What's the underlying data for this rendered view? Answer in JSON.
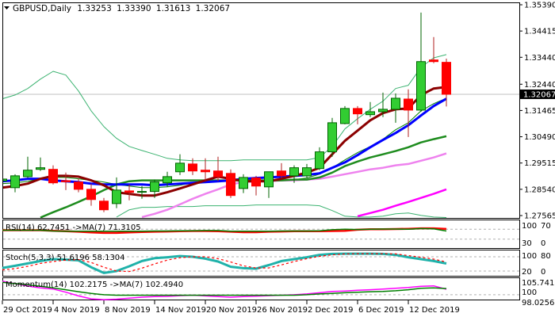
{
  "header": {
    "symbol": "GBPUSD,Daily",
    "open": "1.33253",
    "high": "1.33390",
    "low": "1.31613",
    "close": "1.32067"
  },
  "price_axis": {
    "labels": [
      "1.35390",
      "1.34415",
      "1.33440",
      "1.32440",
      "1.31465",
      "1.30490",
      "1.29515",
      "1.28540",
      "1.27565"
    ],
    "current_price": "1.32067",
    "current_price_value": 1.32067,
    "range": [
      1.27565,
      1.3539
    ]
  },
  "date_axis": {
    "labels": [
      "29 Oct 2019",
      "4 Nov 2019",
      "8 Nov 2019",
      "14 Nov 2019",
      "20 Nov 2019",
      "26 Nov 2019",
      "2 Dec 2019",
      "6 Dec 2019",
      "12 Dec 2019"
    ],
    "every_n_candles": 4
  },
  "colors": {
    "bull_body": "#32cd32",
    "bull_border": "#006400",
    "bear_body": "#ff0000",
    "bear_border": "#b22222",
    "ma_maroon": "#8b0000",
    "ma_blue": "#0000ff",
    "ma_green": "#1e8c1e",
    "ma_violet": "#ee82ee",
    "ma_magenta": "#ff00ff",
    "band": "#3cb371",
    "ma_thin": "#008000",
    "rsi": "#008000",
    "rsi_ma": "#ff0000",
    "stoch_main": "#20b2aa",
    "stoch_signal": "#ff0000",
    "momentum": "#ff00ff",
    "momentum_ma": "#008000"
  },
  "candles": [
    [
      1.2885,
      1.2905,
      1.286,
      1.2892
    ],
    [
      1.286,
      1.291,
      1.2843,
      1.2904
    ],
    [
      1.2901,
      1.2975,
      1.2896,
      1.2925
    ],
    [
      1.2928,
      1.2972,
      1.2922,
      1.2934
    ],
    [
      1.2928,
      1.2943,
      1.2872,
      1.2878
    ],
    [
      1.2886,
      1.2916,
      1.2851,
      1.2882
    ],
    [
      1.2881,
      1.2893,
      1.2843,
      1.2854
    ],
    [
      1.2854,
      1.2875,
      1.2793,
      1.2816
    ],
    [
      1.281,
      1.2822,
      1.2769,
      1.2778
    ],
    [
      1.2801,
      1.2898,
      1.2784,
      1.2851
    ],
    [
      1.2848,
      1.2872,
      1.2813,
      1.2843
    ],
    [
      1.2843,
      1.2866,
      1.2819,
      1.2846
    ],
    [
      1.2846,
      1.289,
      1.2822,
      1.2881
    ],
    [
      1.2878,
      1.2919,
      1.2863,
      1.2901
    ],
    [
      1.2919,
      1.2984,
      1.2907,
      1.2951
    ],
    [
      1.2948,
      1.2969,
      1.2907,
      1.2922
    ],
    [
      1.2925,
      1.2969,
      1.2887,
      1.2919
    ],
    [
      1.2922,
      1.2975,
      1.2884,
      1.2901
    ],
    [
      1.2913,
      1.2928,
      1.2822,
      1.2831
    ],
    [
      1.2857,
      1.291,
      1.284,
      1.2898
    ],
    [
      1.2896,
      1.2904,
      1.2831,
      1.2866
    ],
    [
      1.2863,
      1.2919,
      1.2822,
      1.2919
    ],
    [
      1.2922,
      1.2951,
      1.2896,
      1.2904
    ],
    [
      1.2904,
      1.2943,
      1.2878,
      1.2934
    ],
    [
      1.2904,
      1.2948,
      1.2896,
      1.2934
    ],
    [
      1.2931,
      1.301,
      1.2925,
      1.2993
    ],
    [
      1.2993,
      1.3119,
      1.2975,
      1.3101
    ],
    [
      1.3098,
      1.3163,
      1.3095,
      1.3154
    ],
    [
      1.3154,
      1.3163,
      1.3095,
      1.3134
    ],
    [
      1.3131,
      1.3178,
      1.3122,
      1.3142
    ],
    [
      1.3142,
      1.3213,
      1.3122,
      1.3151
    ],
    [
      1.3151,
      1.321,
      1.3101,
      1.3192
    ],
    [
      1.3189,
      1.3225,
      1.3048,
      1.3148
    ],
    [
      1.3148,
      1.351,
      1.3142,
      1.3328
    ],
    [
      1.3334,
      1.3419,
      1.3322,
      1.3328
    ],
    [
      1.33253,
      1.3339,
      1.31613,
      1.32067
    ]
  ],
  "overlays": [
    {
      "name": "band-upper",
      "color": "band",
      "width": 1,
      "values": [
        1.319,
        1.3204,
        1.3228,
        1.3263,
        1.3292,
        1.3278,
        1.3219,
        1.3145,
        1.3087,
        1.3043,
        1.3013,
        1.2998,
        1.2984,
        1.2969,
        1.2963,
        1.296,
        1.296,
        1.296,
        1.296,
        1.2963,
        1.2963,
        1.2963,
        1.2963,
        1.2963,
        1.2963,
        1.2972,
        1.3013,
        1.3078,
        1.3116,
        1.3151,
        1.3181,
        1.3228,
        1.324,
        1.3307,
        1.3342,
        1.3354
      ]
    },
    {
      "name": "band-lower",
      "color": "band",
      "width": 1,
      "values": [
        null,
        null,
        null,
        null,
        null,
        null,
        null,
        null,
        null,
        1.2751,
        1.2778,
        1.2787,
        1.2787,
        1.279,
        1.279,
        1.279,
        1.2793,
        1.2793,
        1.2793,
        1.2793,
        1.2796,
        1.2796,
        1.2796,
        1.2796,
        1.2796,
        1.2793,
        1.2775,
        1.2754,
        1.2751,
        1.2751,
        1.2754,
        1.2763,
        1.2766,
        1.2757,
        1.2751,
        1.2749
      ]
    },
    {
      "name": "ma-thin",
      "color": "ma_thin",
      "width": 1,
      "values": [
        1.2875,
        1.2878,
        1.2884,
        1.2893,
        1.2898,
        1.2898,
        1.2893,
        1.2887,
        1.2881,
        1.2872,
        1.2866,
        1.286,
        1.286,
        1.2863,
        1.2869,
        1.2878,
        1.2884,
        1.2887,
        1.2887,
        1.2884,
        1.2884,
        1.2887,
        1.2887,
        1.289,
        1.2896,
        1.291,
        1.2934,
        1.2963,
        1.299,
        1.3013,
        1.304,
        1.3075,
        1.3101,
        1.3145,
        1.3172,
        1.3192
      ]
    },
    {
      "name": "ma-magenta",
      "color": "ma_magenta",
      "width": 2.5,
      "values": [
        null,
        null,
        null,
        null,
        null,
        null,
        null,
        null,
        null,
        null,
        null,
        null,
        null,
        null,
        null,
        null,
        null,
        null,
        null,
        null,
        null,
        null,
        null,
        null,
        null,
        null,
        null,
        null,
        1.2754,
        1.2766,
        1.2778,
        1.2793,
        1.2807,
        1.2822,
        1.2837,
        1.2854
      ]
    },
    {
      "name": "ma-violet",
      "color": "ma_violet",
      "width": 2.5,
      "values": [
        null,
        null,
        null,
        null,
        null,
        null,
        null,
        null,
        null,
        null,
        null,
        1.2751,
        1.2763,
        1.2778,
        1.2798,
        1.2819,
        1.2837,
        1.2854,
        1.2872,
        1.2881,
        1.2884,
        1.2884,
        1.2887,
        1.2887,
        1.289,
        1.2893,
        1.2901,
        1.291,
        1.2919,
        1.2928,
        1.2934,
        1.2943,
        1.2948,
        1.296,
        1.2972,
        1.2987
      ]
    },
    {
      "name": "ma-green",
      "color": "ma_green",
      "width": 2.5,
      "values": [
        null,
        null,
        null,
        1.2749,
        1.2769,
        1.2787,
        1.2807,
        1.2828,
        1.2851,
        1.2872,
        1.2884,
        1.2887,
        1.2887,
        1.2887,
        1.2887,
        1.2887,
        1.2887,
        1.2887,
        1.2887,
        1.2887,
        1.2887,
        1.2887,
        1.2887,
        1.289,
        1.289,
        1.2898,
        1.2916,
        1.294,
        1.2957,
        1.2972,
        1.2984,
        1.2996,
        1.301,
        1.3028,
        1.304,
        1.3051
      ]
    },
    {
      "name": "ma-blue",
      "color": "ma_blue",
      "width": 3,
      "values": [
        1.2884,
        1.2887,
        1.2893,
        1.2893,
        1.2887,
        1.2884,
        1.2881,
        1.2875,
        1.2872,
        1.2872,
        1.2872,
        1.2872,
        1.2869,
        1.2872,
        1.2875,
        1.2878,
        1.2881,
        1.2884,
        1.2887,
        1.2893,
        1.2896,
        1.2898,
        1.2901,
        1.2904,
        1.2907,
        1.2913,
        1.2934,
        1.2954,
        1.2981,
        1.301,
        1.3037,
        1.3063,
        1.3092,
        1.3128,
        1.3163,
        1.319
      ]
    },
    {
      "name": "ma-maroon",
      "color": "ma_maroon",
      "width": 3,
      "values": [
        1.286,
        1.2866,
        1.2875,
        1.2893,
        1.2904,
        1.2904,
        1.2901,
        1.2887,
        1.2869,
        1.2843,
        1.2837,
        1.2831,
        1.2831,
        1.2843,
        1.2857,
        1.2872,
        1.2887,
        1.2901,
        1.2893,
        1.2884,
        1.2884,
        1.2884,
        1.2893,
        1.2904,
        1.2916,
        1.2934,
        1.2984,
        1.3034,
        1.3072,
        1.311,
        1.3137,
        1.3151,
        1.3154,
        1.3204,
        1.3228,
        1.3234
      ]
    }
  ],
  "rsi": {
    "label": "RSI(14) 62.7451  ->MA(7) 71.3105",
    "levels": {
      "top": "100",
      "upper": "70",
      "lower": "30",
      "bottom": "0"
    },
    "range": [
      0,
      100
    ],
    "level_values": [
      70,
      30
    ],
    "values": [
      66,
      66,
      66,
      66,
      63,
      62,
      62,
      62,
      62,
      62,
      62,
      62,
      63,
      63,
      64,
      64,
      65,
      65,
      62,
      62,
      62,
      62,
      63,
      63,
      63,
      64,
      68,
      70,
      69,
      70,
      71,
      71,
      70,
      73,
      72,
      62.7451
    ],
    "ma": [
      66,
      66,
      66,
      66,
      64,
      62,
      60,
      57,
      55,
      55,
      57,
      59,
      60,
      61,
      62,
      63,
      63,
      62,
      60,
      58,
      58,
      60,
      61,
      62,
      62,
      62,
      63,
      64,
      68,
      70,
      70,
      71,
      72,
      74,
      74,
      71.3105
    ]
  },
  "stoch": {
    "label": "Stoch(5,3,3) 51.6196 58.1304",
    "levels": {
      "top": "100",
      "upper": "80",
      "lower": "20",
      "bottom": "0"
    },
    "range": [
      0,
      100
    ],
    "level_values": [
      80,
      20
    ],
    "main": [
      33,
      42,
      52,
      62,
      70,
      68,
      65,
      36,
      12,
      20,
      40,
      62,
      74,
      78,
      83,
      80,
      72,
      60,
      38,
      32,
      30,
      45,
      62,
      70,
      78,
      88,
      92,
      93,
      93,
      93,
      92,
      88,
      78,
      70,
      62,
      51.6196
    ],
    "signal": [
      25,
      30,
      40,
      52,
      60,
      66,
      68,
      56,
      36,
      20,
      18,
      32,
      50,
      66,
      76,
      80,
      80,
      72,
      58,
      42,
      33,
      33,
      46,
      60,
      72,
      82,
      88,
      92,
      93,
      93,
      93,
      92,
      85,
      78,
      70,
      58.1304
    ]
  },
  "momentum": {
    "label": "Momentum(14) 102.2175  ->MA(7) 102.4940",
    "levels": {
      "top": "105.7419",
      "mid": "100",
      "bottom": "98.02568"
    },
    "range": [
      98.02568,
      105.7419
    ],
    "level_values": [
      100
    ],
    "values": [
      105.5,
      104.5,
      103.5,
      102.8,
      102.3,
      101,
      99.5,
      98.3,
      98,
      98.2,
      98.6,
      99,
      99.2,
      99.3,
      99.6,
      99.8,
      99.5,
      99.2,
      99,
      99.2,
      99.4,
      99.6,
      99.8,
      100,
      100.3,
      100.8,
      101.3,
      101.5,
      101.8,
      102,
      102.3,
      102.6,
      102.9,
      103.4,
      103.6,
      102.2175
    ],
    "ma": [
      105,
      104.5,
      104,
      103.4,
      102.8,
      102,
      101.2,
      100.5,
      100,
      99.8,
      99.8,
      99.8,
      99.8,
      99.8,
      99.8,
      99.8,
      99.8,
      99.8,
      99.8,
      99.8,
      99.8,
      99.8,
      99.8,
      99.8,
      100,
      100.3,
      100.5,
      100.8,
      101,
      101.2,
      101.3,
      101.6,
      102,
      102.6,
      102.8,
      102.494
    ]
  }
}
